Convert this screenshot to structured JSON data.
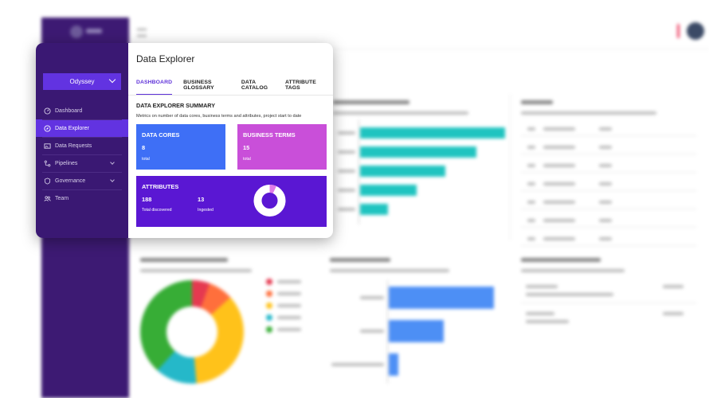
{
  "app": {
    "page_title": "Data Explorer"
  },
  "sidebar": {
    "project": "Odyssey",
    "items": [
      {
        "label": "Dashboard",
        "icon": "dashboard-icon"
      },
      {
        "label": "Data Explorer",
        "icon": "compass-icon",
        "active": true
      },
      {
        "label": "Data Requests",
        "icon": "image-icon"
      },
      {
        "label": "Pipelines",
        "icon": "pipeline-icon",
        "expandable": true
      },
      {
        "label": "Governance",
        "icon": "shield-icon",
        "expandable": true
      },
      {
        "label": "Team",
        "icon": "team-icon"
      }
    ]
  },
  "tabs": [
    {
      "label": "DASHBOARD",
      "active": true
    },
    {
      "label": "BUSINESS GLOSSARY"
    },
    {
      "label": "DATA CATALOG"
    },
    {
      "label": "ATTRIBUTE TAGS"
    }
  ],
  "summary": {
    "title": "DATA EXPLORER SUMMARY",
    "description": "Metrics on number of data cores, business terms and attributes, project start to date"
  },
  "tiles": {
    "data_cores": {
      "title": "DATA CORES",
      "value": "8",
      "caption": "total",
      "color": "#3e6ff6"
    },
    "business_terms": {
      "title": "BUSINESS TERMS",
      "value": "15",
      "caption": "total",
      "color": "#c94fd9"
    },
    "attributes": {
      "title": "ATTRIBUTES",
      "discovered_value": "188",
      "discovered_caption": "Total discovered",
      "ingested_value": "13",
      "ingested_caption": "Ingested",
      "ingested_fraction": 0.069,
      "color": "#5a17d3"
    }
  },
  "colors": {
    "sidebar": "#3a1873",
    "accent": "#6233e1",
    "donut_track": "#ffffff",
    "donut_fill": "#e07be8"
  },
  "background_dashboard": {
    "tech_bars": [
      1.0,
      0.8,
      0.59,
      0.39,
      0.19
    ],
    "model_bars": [
      1.0,
      0.52,
      0.09
    ],
    "classification_slices": [
      0.055,
      0.078,
      0.352,
      0.131,
      0.384
    ],
    "classification_colors": [
      "#e53950",
      "#ff6f3c",
      "#ffc21a",
      "#25b8c9",
      "#37ad36"
    ]
  }
}
